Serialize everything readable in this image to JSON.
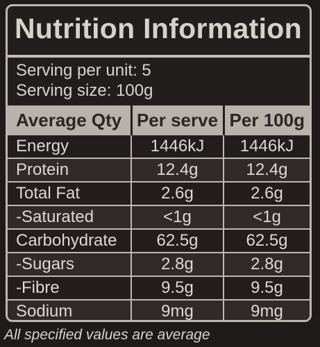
{
  "label": {
    "title": "Nutrition Information",
    "serving_per_unit": "Serving per unit: 5",
    "serving_size": "Serving size: 100g"
  },
  "table": {
    "headers": [
      "Average Qty",
      "Per serve",
      "Per 100g"
    ],
    "rows": [
      {
        "name": "Energy",
        "per_serve": "1446kJ",
        "per_100g": "1446kJ"
      },
      {
        "name": "Protein",
        "per_serve": "12.4g",
        "per_100g": "12.4g"
      },
      {
        "name": "Total Fat",
        "per_serve": "2.6g",
        "per_100g": "2.6g"
      },
      {
        "name": "-Saturated",
        "per_serve": "<1g",
        "per_100g": "<1g"
      },
      {
        "name": "Carbohydrate",
        "per_serve": "62.5g",
        "per_100g": "62.5g"
      },
      {
        "name": "-Sugars",
        "per_serve": "2.8g",
        "per_100g": "2.8g"
      },
      {
        "name": "-Fibre",
        "per_serve": "9.5g",
        "per_100g": "9.5g"
      },
      {
        "name": "Sodium",
        "per_serve": "9mg",
        "per_100g": "9mg"
      }
    ]
  },
  "footnote": "All specified values are average",
  "colors": {
    "background": "#1e1b1a",
    "header_band": "#b7b2ac",
    "rule": "#bdb8b1",
    "text": "#e4e1dc"
  }
}
